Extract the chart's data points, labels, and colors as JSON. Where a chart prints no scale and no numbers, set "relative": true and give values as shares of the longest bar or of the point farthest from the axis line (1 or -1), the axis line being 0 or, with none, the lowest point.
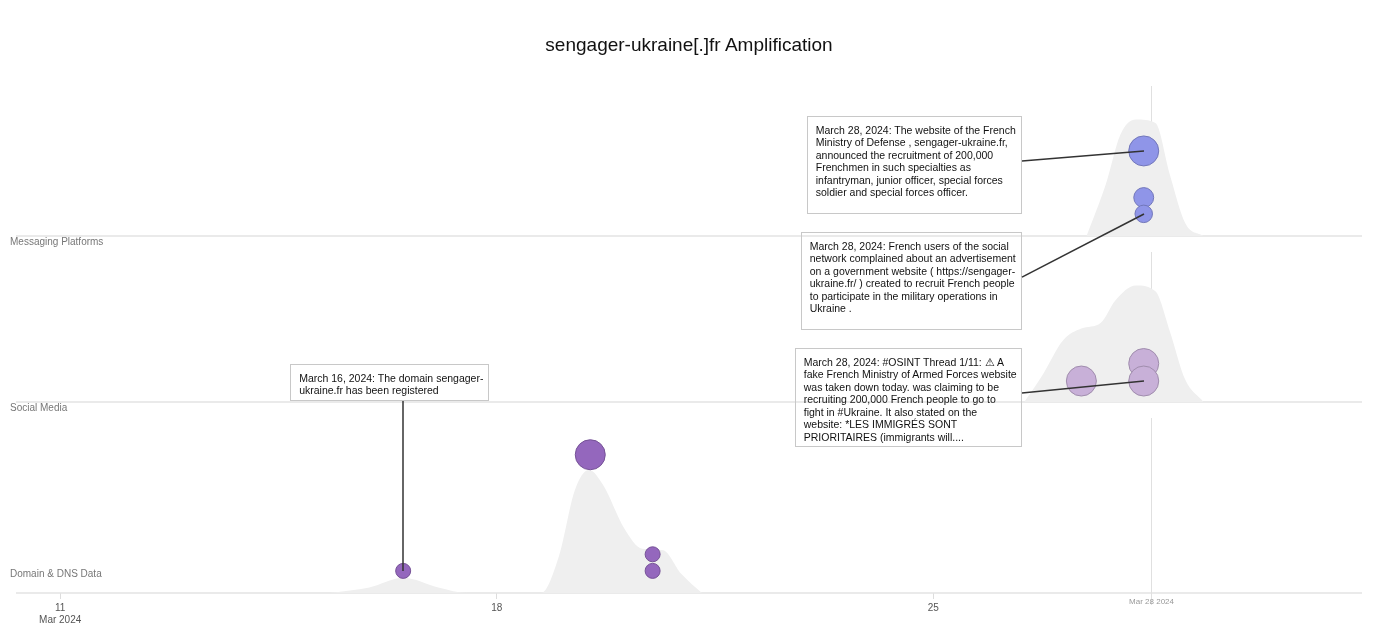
{
  "chart_data": [
    {
      "type": "bubble",
      "title": "sengager-ukraine[.]fr Amplification",
      "relative": true,
      "tick_labels": false,
      "xlim": [
        "2024-03-10T07:00",
        "2024-03-31T21:00"
      ],
      "series": [
        {
          "type": "area",
          "color": "#efefef",
          "x": [
            "2024-03-27T11:00",
            "2024-03-27T18:30",
            "2024-03-28T00:00",
            "2024-03-28T06:00",
            "2024-03-28T13:30",
            "2024-03-28T19:00",
            "2024-03-29T01:00",
            "2024-03-29T08:00"
          ],
          "values": [
            0,
            0.45,
            0.87,
            1,
            0.97,
            0.53,
            0.11,
            0
          ]
        },
        {
          "type": "bubble",
          "color": "#8f95e8",
          "x": [
            "2024-03-28T09:00",
            "2024-03-28T09:00",
            "2024-03-28T09:00"
          ],
          "values": [
            0.73,
            0.33,
            0.19
          ],
          "sizes": [
            1,
            0.44,
            0.34
          ]
        }
      ],
      "ref_lines": [
        {
          "axis": "x",
          "value": "2024-03-28T12:00"
        }
      ],
      "annotations": [
        "Messaging Platforms",
        {
          "text": "March 28, 2024: The website of the French Ministry of Defense , sengager-ukraine.fr, announced the recruitment of 200,000 Frenchmen in such specialties as infantryman, junior officer, special forces soldier and special forces officer.",
          "x": "2024-03-28T09:00",
          "y": 0.73
        },
        {
          "text": "March 28, 2024: French users of the social network complained about an advertisement on a government website ( https://sengager-ukraine.fr/ ) created to recruit French people to participate in the military operations in Ukraine .",
          "x": "2024-03-28T09:00",
          "y": 0.19
        }
      ]
    },
    {
      "type": "bubble",
      "relative": true,
      "tick_labels": false,
      "xlim": [
        "2024-03-10T07:00",
        "2024-03-31T21:00"
      ],
      "series": [
        {
          "type": "area",
          "color": "#efefef",
          "x": [
            "2024-03-26T11:00",
            "2024-03-26T18:00",
            "2024-03-27T02:00",
            "2024-03-27T09:00",
            "2024-03-27T16:30",
            "2024-03-27T22:00",
            "2024-03-28T06:00",
            "2024-03-28T13:30",
            "2024-03-28T19:00",
            "2024-03-29T01:00",
            "2024-03-29T08:00"
          ],
          "values": [
            0,
            0.23,
            0.53,
            0.63,
            0.68,
            0.87,
            1,
            0.95,
            0.61,
            0.19,
            0
          ]
        },
        {
          "type": "bubble",
          "color": "#c8b0d8",
          "x": [
            "2024-03-27T09:00",
            "2024-03-28T09:00",
            "2024-03-28T09:00"
          ],
          "values": [
            0.18,
            0.33,
            0.18
          ],
          "sizes": [
            1,
            1,
            1
          ]
        }
      ],
      "ref_lines": [
        {
          "axis": "x",
          "value": "2024-03-28T12:00"
        }
      ],
      "annotations": [
        "Social Media",
        {
          "text": "March 28, 2024:  #OSINT Thread 1/11: ⚠ A fake French Ministry of Armed Forces website was taken down today. was claiming to be recruiting 200,000 French people to go to fight in #Ukraine. It also stated on the website: *LES IMMIGRÉS SONT PRIORITAIRES (immigrants will....",
          "x": "2024-03-28T09:00",
          "y": 0.18
        }
      ]
    },
    {
      "type": "bubble",
      "relative": true,
      "tick_labels": "x",
      "xlim": [
        "2024-03-10T07:00",
        "2024-03-31T21:00"
      ],
      "xticks": [
        {
          "value": "2024-03-11",
          "label": "11\nMar 2024"
        },
        {
          "value": "2024-03-18",
          "label": "18"
        },
        {
          "value": "2024-03-25",
          "label": "25"
        }
      ],
      "series": [
        {
          "type": "area",
          "color": "#efefef",
          "x": [
            "2024-03-15T08:00",
            "2024-03-15T23:00",
            "2024-03-16T12:00",
            "2024-03-17T01:30",
            "2024-03-17T13:00",
            "2024-03-18T17:00",
            "2024-03-19T00:00",
            "2024-03-19T06:00",
            "2024-03-19T11:30",
            "2024-03-19T17:00",
            "2024-03-20T01:00",
            "2024-03-20T08:00",
            "2024-03-20T16:00",
            "2024-03-20T23:00",
            "2024-03-21T07:00"
          ],
          "values": [
            0,
            0.04,
            0.11,
            0.04,
            0,
            0,
            0.27,
            0.74,
            0.89,
            0.78,
            0.47,
            0.32,
            0.31,
            0.14,
            0
          ]
        },
        {
          "type": "bubble",
          "color": "#9467bd",
          "x": [
            "2024-03-16T12:00",
            "2024-03-19T12:00",
            "2024-03-20T12:00",
            "2024-03-20T12:00"
          ],
          "values": [
            0.16,
            1,
            0.28,
            0.16
          ],
          "sizes": [
            0.25,
            1,
            0.25,
            0.25
          ]
        }
      ],
      "ref_lines": [
        {
          "axis": "x",
          "value": "2024-03-28T12:00",
          "label": "Mar 28 2024"
        }
      ],
      "annotations": [
        "Domain & DNS Data",
        {
          "text": "March 16, 2024: The domain sengager-ukraine.fr has been registered",
          "x": "2024-03-16T12:00",
          "y": 0.16
        }
      ]
    }
  ]
}
